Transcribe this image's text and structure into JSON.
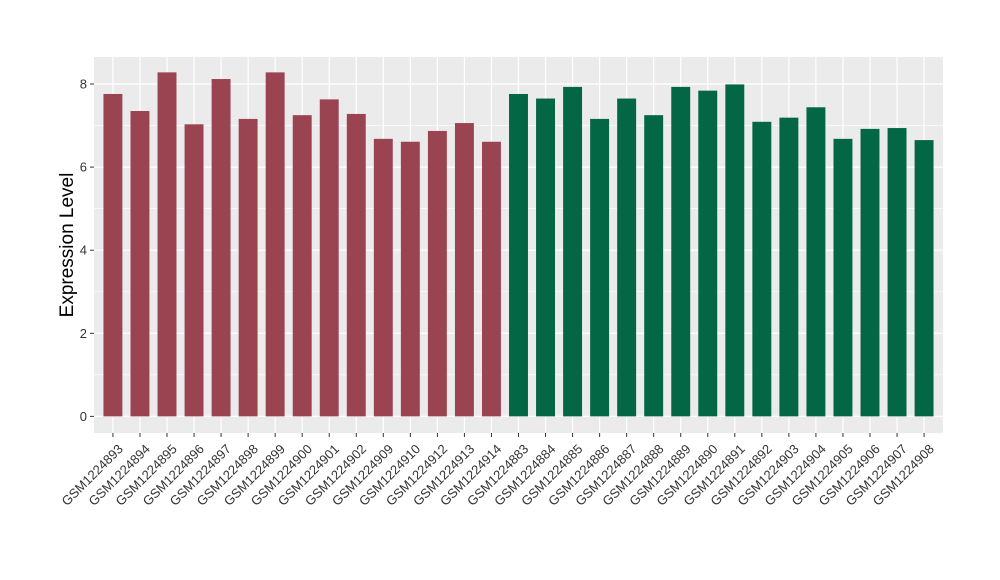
{
  "chart_data": {
    "type": "bar",
    "title": "",
    "xlabel": "",
    "ylabel": "Expression Level",
    "ylim": [
      -0.4,
      8.65
    ],
    "yticks": [
      0,
      2,
      4,
      6,
      8
    ],
    "grid": true,
    "background": "#EBEBEB",
    "gridline_color": "#FFFFFF",
    "categories": [
      "GSM1224893",
      "GSM1224894",
      "GSM1224895",
      "GSM1224896",
      "GSM1224897",
      "GSM1224898",
      "GSM1224899",
      "GSM1224900",
      "GSM1224901",
      "GSM1224902",
      "GSM1224909",
      "GSM1224910",
      "GSM1224912",
      "GSM1224913",
      "GSM1224914",
      "GSM1224883",
      "GSM1224884",
      "GSM1224885",
      "GSM1224886",
      "GSM1224887",
      "GSM1224888",
      "GSM1224889",
      "GSM1224890",
      "GSM1224891",
      "GSM1224892",
      "GSM1224903",
      "GSM1224904",
      "GSM1224905",
      "GSM1224906",
      "GSM1224907",
      "GSM1224908"
    ],
    "values": [
      7.76,
      7.35,
      8.28,
      7.03,
      8.12,
      7.16,
      8.28,
      7.25,
      7.63,
      7.28,
      6.68,
      6.61,
      6.87,
      7.06,
      6.61,
      7.76,
      7.65,
      7.93,
      7.16,
      7.65,
      7.25,
      7.93,
      7.84,
      7.99,
      7.09,
      7.19,
      7.44,
      6.68,
      6.92,
      6.94,
      6.65
    ],
    "bar_colors": [
      "#9B4451",
      "#9B4451",
      "#9B4451",
      "#9B4451",
      "#9B4451",
      "#9B4451",
      "#9B4451",
      "#9B4451",
      "#9B4451",
      "#9B4451",
      "#9B4451",
      "#9B4451",
      "#9B4451",
      "#9B4451",
      "#9B4451",
      "#036644",
      "#036644",
      "#036644",
      "#036644",
      "#036644",
      "#036644",
      "#036644",
      "#036644",
      "#036644",
      "#036644",
      "#036644",
      "#036644",
      "#036644",
      "#036644",
      "#036644",
      "#036644"
    ]
  }
}
